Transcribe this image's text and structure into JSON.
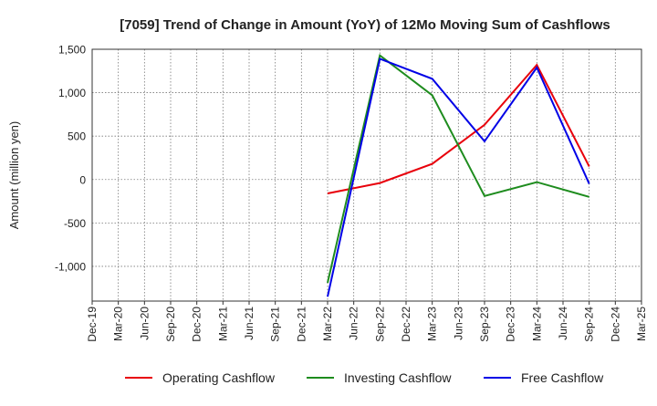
{
  "chart_data": {
    "type": "line",
    "title": "[7059]  Trend of Change in Amount (YoY) of 12Mo Moving Sum of Cashflows",
    "xlabel": "",
    "ylabel": "Amount (million yen)",
    "ylim": [
      -1400,
      1500
    ],
    "yticks": [
      1500,
      1000,
      500,
      0,
      -500,
      -1000
    ],
    "ytick_labels": [
      "1,500",
      "1,000",
      "500",
      "0",
      "-500",
      "-1,000"
    ],
    "categories": [
      "Dec-19",
      "Mar-20",
      "Jun-20",
      "Sep-20",
      "Dec-20",
      "Mar-21",
      "Jun-21",
      "Sep-21",
      "Dec-21",
      "Mar-22",
      "Jun-22",
      "Sep-22",
      "Dec-22",
      "Mar-23",
      "Jun-23",
      "Sep-23",
      "Dec-23",
      "Mar-24",
      "Jun-24",
      "Sep-24",
      "Dec-24",
      "Mar-25"
    ],
    "grid": true,
    "legend_position": "bottom",
    "series": [
      {
        "name": "Operating Cashflow",
        "color": "#e8000b",
        "values": [
          null,
          null,
          null,
          null,
          null,
          null,
          null,
          null,
          null,
          -160,
          null,
          -40,
          null,
          180,
          null,
          630,
          null,
          1320,
          null,
          150,
          null,
          null
        ]
      },
      {
        "name": "Investing Cashflow",
        "color": "#1e8c1e",
        "values": [
          null,
          null,
          null,
          null,
          null,
          null,
          null,
          null,
          null,
          -1190,
          null,
          1430,
          null,
          970,
          null,
          -190,
          null,
          -30,
          null,
          -200,
          null,
          null
        ]
      },
      {
        "name": "Free Cashflow",
        "color": "#0000e6",
        "values": [
          null,
          null,
          null,
          null,
          null,
          null,
          null,
          null,
          null,
          -1350,
          null,
          1390,
          null,
          1160,
          null,
          440,
          null,
          1290,
          null,
          -50,
          null,
          null
        ]
      }
    ]
  }
}
